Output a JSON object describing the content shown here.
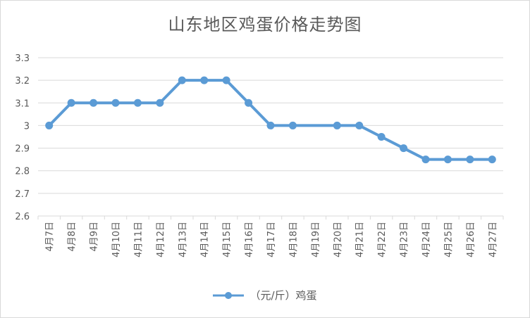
{
  "chart_data": {
    "type": "line",
    "title": "山东地区鸡蛋价格走势图",
    "categories": [
      "4月7日",
      "4月8日",
      "4月9日",
      "4月10日",
      "4月11日",
      "4月12日",
      "4月13日",
      "4月14日",
      "4月15日",
      "4月16日",
      "4月17日",
      "4月18日",
      "4月19日",
      "4月20日",
      "4月21日",
      "4月22日",
      "4月23日",
      "4月24日",
      "4月25日",
      "4月26日",
      "4月27日"
    ],
    "series": [
      {
        "name": "（元/斤）鸡蛋",
        "values": [
          3.0,
          3.1,
          3.1,
          3.1,
          3.1,
          3.1,
          3.2,
          3.2,
          3.2,
          3.1,
          3.0,
          3.0,
          3.0,
          3.0,
          3.0,
          2.95,
          2.9,
          2.85,
          2.85,
          2.85,
          2.85
        ],
        "color": "#5b9bd5",
        "markers_at": [
          0,
          1,
          2,
          3,
          4,
          5,
          6,
          7,
          8,
          9,
          10,
          11,
          13,
          14,
          15,
          16,
          17,
          18,
          19,
          20
        ]
      }
    ],
    "ylim": [
      2.6,
      3.3
    ],
    "yticks": [
      "2.6",
      "2.7",
      "2.8",
      "2.9",
      "3",
      "3.1",
      "3.2",
      "3.3"
    ],
    "grid": true,
    "legend": "bottom"
  },
  "colors": {
    "gridline": "#d9d9d9",
    "text": "#595959"
  }
}
